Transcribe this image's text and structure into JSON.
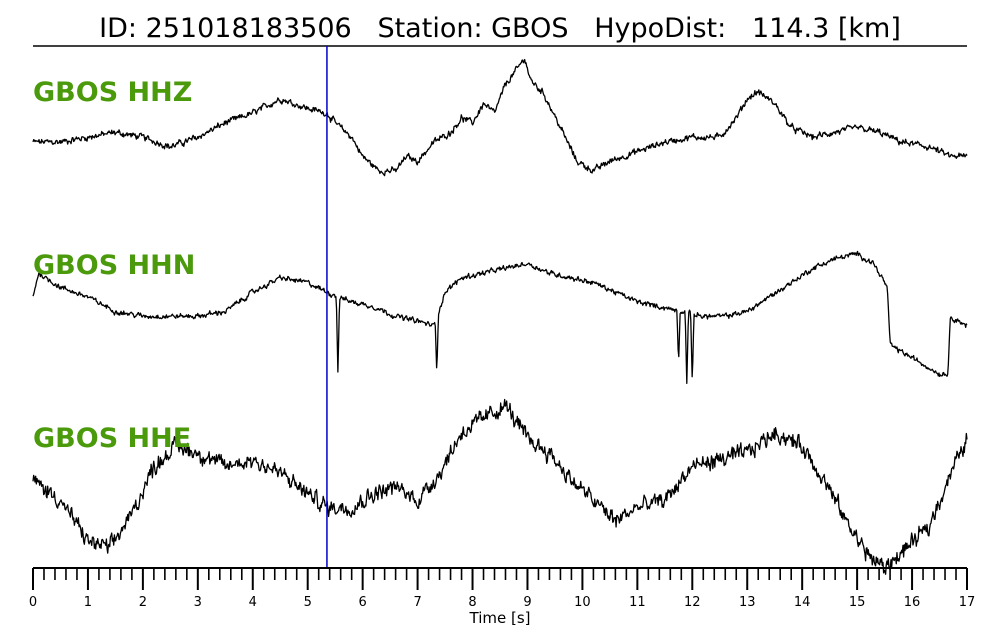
{
  "header": {
    "title": "ID: 251018183506   Station: GBOS   HypoDist:   114.3 [km]"
  },
  "chart_data": {
    "type": "line",
    "title": "ID: 251018183506   Station: GBOS   HypoDist:   114.3 [km]",
    "xlabel": "Time [s]",
    "xlim": [
      0,
      17
    ],
    "x_ticks": [
      "0",
      "1",
      "2",
      "3",
      "4",
      "5",
      "6",
      "7",
      "8",
      "9",
      "10",
      "11",
      "12",
      "13",
      "14",
      "15",
      "16",
      "17"
    ],
    "minor_tick_step": 0.2,
    "pick_marker_time": 5.35,
    "pick_marker_color": "#0000cc",
    "trace_color": "#000000",
    "label_color": "#4a9a0c",
    "series": [
      {
        "name": "GBOS HHZ",
        "keypoints": [
          [
            0,
            0.0
          ],
          [
            0.5,
            0.0
          ],
          [
            1.0,
            0.1
          ],
          [
            1.5,
            0.2
          ],
          [
            2.0,
            0.1
          ],
          [
            2.5,
            -0.1
          ],
          [
            3.0,
            0.1
          ],
          [
            3.5,
            0.4
          ],
          [
            4.0,
            0.6
          ],
          [
            4.5,
            0.9
          ],
          [
            5.0,
            0.7
          ],
          [
            5.35,
            0.6
          ],
          [
            5.5,
            0.4
          ],
          [
            5.8,
            0.1
          ],
          [
            6.0,
            -0.3
          ],
          [
            6.3,
            -0.6
          ],
          [
            6.6,
            -0.6
          ],
          [
            6.8,
            -0.3
          ],
          [
            7.0,
            -0.4
          ],
          [
            7.3,
            0.0
          ],
          [
            7.6,
            0.2
          ],
          [
            7.8,
            0.5
          ],
          [
            8.0,
            0.4
          ],
          [
            8.2,
            0.8
          ],
          [
            8.4,
            0.6
          ],
          [
            8.6,
            1.2
          ],
          [
            8.8,
            1.5
          ],
          [
            8.95,
            1.75
          ],
          [
            9.05,
            1.3
          ],
          [
            9.3,
            1.0
          ],
          [
            9.6,
            0.3
          ],
          [
            9.9,
            -0.4
          ],
          [
            10.2,
            -0.6
          ],
          [
            10.5,
            -0.4
          ],
          [
            11.0,
            -0.2
          ],
          [
            11.5,
            0.0
          ],
          [
            12.0,
            0.1
          ],
          [
            12.5,
            0.1
          ],
          [
            12.8,
            0.5
          ],
          [
            13.0,
            0.9
          ],
          [
            13.2,
            1.05
          ],
          [
            13.5,
            0.8
          ],
          [
            13.8,
            0.3
          ],
          [
            14.2,
            0.1
          ],
          [
            14.6,
            0.2
          ],
          [
            15.0,
            0.3
          ],
          [
            15.4,
            0.2
          ],
          [
            15.8,
            0.0
          ],
          [
            16.3,
            -0.1
          ],
          [
            16.7,
            -0.3
          ],
          [
            17.0,
            -0.3
          ]
        ],
        "noise": 0.1
      },
      {
        "name": "GBOS HHN",
        "keypoints": [
          [
            0,
            0.0
          ],
          [
            0.1,
            0.5
          ],
          [
            0.5,
            0.2
          ],
          [
            1.0,
            0.0
          ],
          [
            1.5,
            -0.3
          ],
          [
            2.0,
            -0.4
          ],
          [
            2.5,
            -0.4
          ],
          [
            3.0,
            -0.4
          ],
          [
            3.5,
            -0.3
          ],
          [
            4.0,
            0.1
          ],
          [
            4.5,
            0.4
          ],
          [
            5.0,
            0.3
          ],
          [
            5.35,
            0.1
          ],
          [
            5.8,
            -0.1
          ],
          [
            6.2,
            -0.2
          ],
          [
            6.6,
            -0.4
          ],
          [
            7.0,
            -0.5
          ],
          [
            7.3,
            -0.6
          ],
          [
            7.5,
            0.1
          ],
          [
            7.8,
            0.4
          ],
          [
            8.2,
            0.5
          ],
          [
            8.6,
            0.6
          ],
          [
            9.0,
            0.7
          ],
          [
            9.4,
            0.5
          ],
          [
            9.8,
            0.4
          ],
          [
            10.2,
            0.3
          ],
          [
            10.6,
            0.1
          ],
          [
            11.0,
            -0.1
          ],
          [
            11.4,
            -0.2
          ],
          [
            11.8,
            -0.3
          ],
          [
            12.2,
            -0.4
          ],
          [
            12.6,
            -0.4
          ],
          [
            13.0,
            -0.3
          ],
          [
            13.4,
            0.0
          ],
          [
            13.8,
            0.3
          ],
          [
            14.2,
            0.6
          ],
          [
            14.6,
            0.8
          ],
          [
            15.0,
            0.9
          ],
          [
            15.3,
            0.7
          ],
          [
            15.55,
            0.2
          ],
          [
            15.6,
            -1.0
          ],
          [
            15.9,
            -1.2
          ],
          [
            16.2,
            -1.4
          ],
          [
            16.5,
            -1.6
          ],
          [
            16.65,
            -1.6
          ],
          [
            16.7,
            -0.4
          ],
          [
            17.0,
            -0.6
          ]
        ],
        "spikes": [
          [
            5.55,
            -1.6
          ],
          [
            7.35,
            -1.6
          ],
          [
            11.75,
            -1.4
          ],
          [
            11.9,
            -1.8
          ],
          [
            12.0,
            -1.8
          ]
        ],
        "noise": 0.08
      },
      {
        "name": "GBOS HHE",
        "keypoints": [
          [
            0,
            0.0
          ],
          [
            0.5,
            -0.3
          ],
          [
            1.0,
            -0.9
          ],
          [
            1.4,
            -1.0
          ],
          [
            1.8,
            -0.5
          ],
          [
            2.2,
            0.2
          ],
          [
            2.6,
            0.5
          ],
          [
            3.0,
            0.4
          ],
          [
            3.5,
            0.2
          ],
          [
            4.0,
            0.3
          ],
          [
            4.5,
            0.1
          ],
          [
            5.0,
            -0.2
          ],
          [
            5.35,
            -0.4
          ],
          [
            5.8,
            -0.4
          ],
          [
            6.2,
            -0.2
          ],
          [
            6.6,
            -0.1
          ],
          [
            7.0,
            -0.3
          ],
          [
            7.4,
            0.1
          ],
          [
            7.8,
            0.7
          ],
          [
            8.2,
            0.9
          ],
          [
            8.6,
            1.1
          ],
          [
            9.0,
            0.6
          ],
          [
            9.4,
            0.4
          ],
          [
            9.8,
            0.0
          ],
          [
            10.2,
            -0.3
          ],
          [
            10.6,
            -0.6
          ],
          [
            11.0,
            -0.4
          ],
          [
            11.5,
            -0.3
          ],
          [
            12.0,
            0.2
          ],
          [
            12.5,
            0.3
          ],
          [
            13.0,
            0.4
          ],
          [
            13.5,
            0.7
          ],
          [
            14.0,
            0.5
          ],
          [
            14.4,
            0.0
          ],
          [
            14.8,
            -0.6
          ],
          [
            15.2,
            -1.1
          ],
          [
            15.5,
            -1.3
          ],
          [
            15.9,
            -1.0
          ],
          [
            16.3,
            -0.7
          ],
          [
            16.7,
            0.1
          ],
          [
            17.0,
            0.6
          ]
        ],
        "noise": 0.18
      }
    ]
  }
}
